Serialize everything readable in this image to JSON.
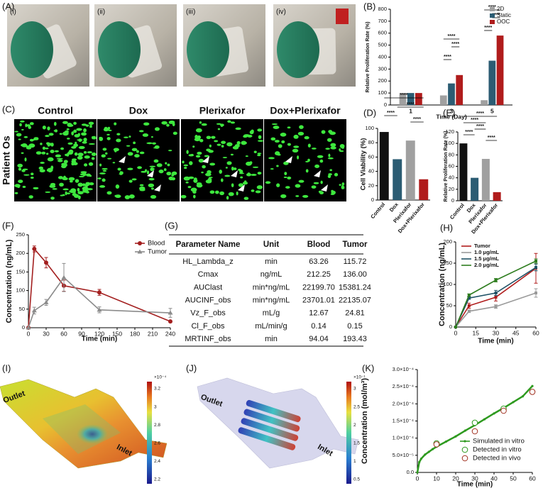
{
  "panel_labels": [
    "(A)",
    "(B)",
    "(C)",
    "(D)",
    "(E)",
    "(F)",
    "(G)",
    "(H)",
    "(I)",
    "(J)",
    "(K)"
  ],
  "photos": [
    "(i)",
    "(ii)",
    "(iii)",
    "(iv)"
  ],
  "micrographs": {
    "sample": "Patient Os",
    "titles": [
      "Control",
      "Dox",
      "Plerixafor",
      "Dox+Plerixafor"
    ]
  },
  "table": {
    "columns": [
      "Parameter Name",
      "Unit",
      "Blood",
      "Tumor"
    ],
    "rows": [
      [
        "HL_Lambda_z",
        "min",
        "63.26",
        "115.72"
      ],
      [
        "Cmax",
        "ng/mL",
        "212.25",
        "136.00"
      ],
      [
        "AUClast",
        "min*ng/mL",
        "22199.70",
        "15381.24"
      ],
      [
        "AUCINF_obs",
        "min*ng/mL",
        "23701.01",
        "22135.07"
      ],
      [
        "Vz_F_obs",
        "mL/g",
        "12.67",
        "24.81"
      ],
      [
        "Cl_F_obs",
        "mL/min/g",
        "0.14",
        "0.15"
      ],
      [
        "MRTINF_obs",
        "min",
        "94.04",
        "193.43"
      ]
    ]
  },
  "simulations": [
    {
      "inlet": "Inlet",
      "outlet": "Outlet",
      "colorbar_exponent": "×10⁻⁴",
      "colorbar_ticks": [
        "3.2",
        "3",
        "2.8",
        "2.6",
        "2.4",
        "2.2"
      ]
    },
    {
      "inlet": "Inlet",
      "outlet": "Outlet",
      "colorbar_exponent": "×10⁻¹",
      "colorbar_ticks": [
        "3",
        "2.5",
        "2",
        "1.5",
        "1",
        "0.5"
      ]
    }
  ],
  "chart_data": [
    {
      "type": "bar",
      "x_label": "Time (Day)",
      "y_label": "Relative Proliferation Rate (%)",
      "categories": [
        "1",
        "3",
        "5"
      ],
      "series": [
        {
          "name": "2D",
          "color": "#a0a0a0",
          "values": [
            100,
            80,
            40
          ]
        },
        {
          "name": "Static",
          "color": "#2b5c73",
          "values": [
            100,
            180,
            370
          ]
        },
        {
          "name": "OOC",
          "color": "#b01c1c",
          "values": [
            100,
            250,
            580
          ]
        }
      ],
      "ylim": [
        0,
        800
      ],
      "yticks": [
        0,
        100,
        200,
        300,
        400,
        500,
        600,
        700,
        800
      ],
      "legend": "upper left",
      "significance": [
        "****",
        "****",
        "****",
        "****",
        "****",
        "****"
      ]
    },
    {
      "type": "bar",
      "y_label": "Cell Viability (%)",
      "categories": [
        "Control",
        "Dox",
        "Plerixafor",
        "Dox+Plerixafor"
      ],
      "values": [
        95,
        57,
        83,
        29
      ],
      "colors": [
        "#111111",
        "#2b5c73",
        "#a0a0a0",
        "#b01c1c"
      ],
      "ylim": [
        0,
        100
      ],
      "yticks": [
        0,
        20,
        40,
        60,
        80,
        100
      ],
      "significance": [
        "****",
        "****",
        "****",
        "****"
      ]
    },
    {
      "type": "bar",
      "y_label": "Relative Proliferation Rate (%)",
      "categories": [
        "Control",
        "Dox",
        "Plerixafor",
        "Dox+Plerixafor"
      ],
      "values": [
        100,
        40,
        73,
        15
      ],
      "colors": [
        "#111111",
        "#2b5c73",
        "#a0a0a0",
        "#b01c1c"
      ],
      "ylim": [
        0,
        120
      ],
      "yticks": [
        0,
        20,
        40,
        60,
        80,
        100,
        120
      ],
      "significance": [
        "****",
        "****",
        "****",
        "****",
        "****"
      ]
    },
    {
      "type": "line",
      "x_label": "Time (min)",
      "y_label": "Concentration (ng/mL)",
      "x": [
        0,
        10,
        30,
        60,
        120,
        240
      ],
      "series": [
        {
          "name": "Blood",
          "color": "#a31f1f",
          "marker": "circle",
          "values": [
            0,
            212,
            175,
            113,
            95,
            17
          ],
          "errors": [
            0,
            8,
            14,
            15,
            8,
            2
          ]
        },
        {
          "name": "Tumor",
          "color": "#8c8c8c",
          "marker": "triangle",
          "values": [
            0,
            46,
            68,
            135,
            48,
            40
          ],
          "errors": [
            0,
            9,
            8,
            38,
            8,
            12
          ]
        }
      ],
      "xlim": [
        0,
        240
      ],
      "xticks": [
        0,
        30,
        60,
        90,
        120,
        150,
        180,
        210,
        240
      ],
      "ylim": [
        0,
        250
      ],
      "yticks": [
        0,
        50,
        100,
        150,
        200,
        250
      ],
      "legend": "upper right"
    },
    {
      "type": "line",
      "x_label": "Time (min)",
      "y_label": "Concentration (ng/mL)",
      "x": [
        0,
        10,
        30,
        60
      ],
      "series": [
        {
          "name": "Tumor",
          "color": "#b01c1c",
          "marker": "square",
          "values": [
            0,
            50,
            70,
            138
          ],
          "errors": [
            0,
            6,
            9,
            35
          ]
        },
        {
          "name": "1.0 μg/mL",
          "color": "#9a9a9a",
          "marker": "square",
          "values": [
            0,
            37,
            48,
            80
          ],
          "errors": [
            0,
            3,
            4,
            10
          ]
        },
        {
          "name": "1.5 μg/mL",
          "color": "#1f5266",
          "marker": "square",
          "values": [
            0,
            68,
            80,
            140
          ],
          "errors": [
            0,
            3,
            6,
            8
          ]
        },
        {
          "name": "2.0 μg/mL",
          "color": "#2e7d1f",
          "marker": "square",
          "values": [
            0,
            75,
            110,
            155
          ],
          "errors": [
            0,
            3,
            4,
            5
          ]
        }
      ],
      "xlim": [
        0,
        60
      ],
      "xticks": [
        0,
        15,
        30,
        45,
        60
      ],
      "ylim": [
        0,
        200
      ],
      "yticks": [
        0,
        50,
        100,
        150,
        200
      ],
      "legend": "upper left"
    },
    {
      "type": "line",
      "x_label": "Time (min)",
      "y_label": "Concentration (mol/m³)",
      "series": [
        {
          "name": "Simulated in vitro",
          "color": "#2e9a1f",
          "marker": "dot",
          "line": true,
          "x": [
            0,
            1,
            2,
            4,
            6,
            8,
            10,
            15,
            20,
            25,
            30,
            35,
            40,
            45,
            50,
            55,
            60
          ],
          "values": [
            0,
            3e-05,
            4e-05,
            5.2e-05,
            6e-05,
            6.8e-05,
            7.5e-05,
            9e-05,
            0.000105,
            0.000122,
            0.000138,
            0.000155,
            0.000172,
            0.000188,
            0.000205,
            0.000222,
            0.000252
          ]
        },
        {
          "name": "Detected in vitro",
          "color": "#2e9a1f",
          "marker": "open",
          "line": false,
          "x": [
            10,
            30,
            45
          ],
          "values": [
            8.5e-05,
            0.000145,
            0.000186
          ]
        },
        {
          "name": "Detected in vivo",
          "color": "#a03020",
          "marker": "open",
          "line": false,
          "x": [
            10,
            30,
            45,
            60
          ],
          "values": [
            8.2e-05,
            0.00012,
            0.00018,
            0.000235
          ]
        }
      ],
      "xlim": [
        0,
        60
      ],
      "xticks": [
        0,
        10,
        20,
        30,
        40,
        50,
        60
      ],
      "ylim": [
        0,
        0.0003
      ],
      "yticks": [
        {
          "value": 0,
          "label": "0.0"
        },
        {
          "value": 5e-05,
          "label": "5.0×10⁻⁵"
        },
        {
          "value": 0.0001,
          "label": "1.0×10⁻⁴"
        },
        {
          "value": 0.00015,
          "label": "1.5×10⁻⁴"
        },
        {
          "value": 0.0002,
          "label": "2.0×10⁻⁴"
        },
        {
          "value": 0.00025,
          "label": "2.5×10⁻⁴"
        },
        {
          "value": 0.0003,
          "label": "3.0×10⁻⁴"
        }
      ],
      "legend": "lower right"
    }
  ]
}
